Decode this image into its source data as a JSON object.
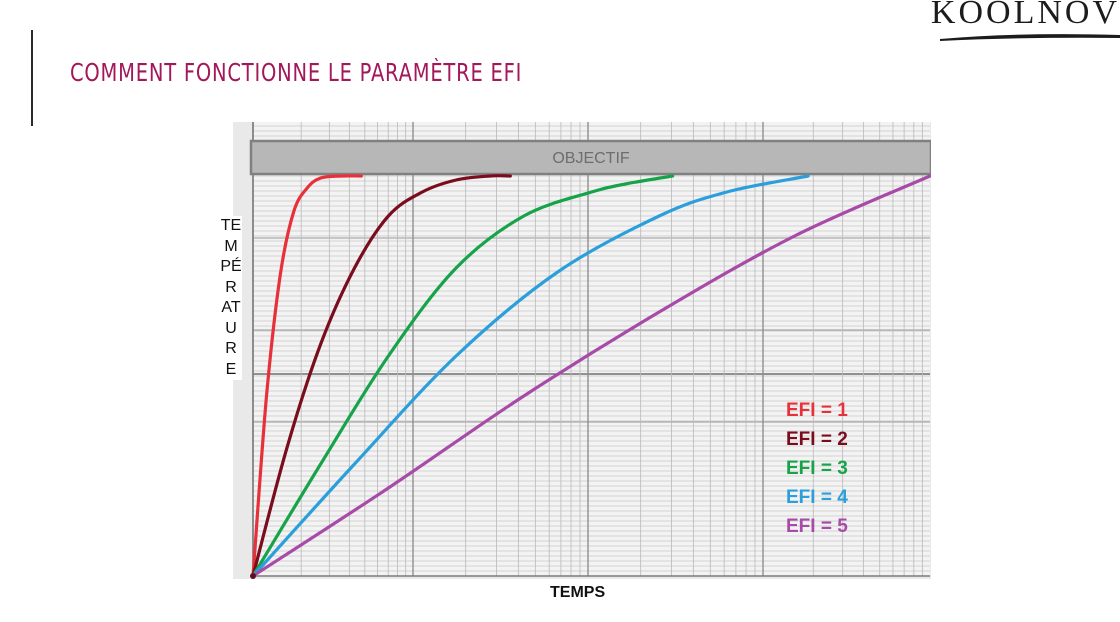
{
  "slide": {
    "title": "COMMENT FONCTIONNE LE PARAMÈTRE EFI",
    "logo_text": "KOOLNOV"
  },
  "chart_data": {
    "type": "line",
    "ylabel": "TEMPÉRATURE",
    "xlabel": "TEMPS",
    "annotation": "OBJECTIF",
    "xlim": [
      0,
      100
    ],
    "ylim": [
      0,
      100
    ],
    "grid": true,
    "legend_position": "bottom-right",
    "series": [
      {
        "name": "EFI = 1",
        "color": "#e8303a",
        "x": [
          0,
          2,
          4,
          6,
          8,
          10,
          13,
          16
        ],
        "y": [
          0,
          45,
          75,
          91,
          97,
          99.5,
          100,
          100
        ]
      },
      {
        "name": "EFI = 2",
        "color": "#7a0c1e",
        "x": [
          0,
          5,
          10,
          15,
          20,
          25,
          30,
          35,
          38
        ],
        "y": [
          0,
          32,
          58,
          77,
          90,
          96,
          99,
          100,
          100
        ]
      },
      {
        "name": "EFI = 3",
        "color": "#17a34a",
        "x": [
          0,
          10,
          20,
          30,
          40,
          50,
          55,
          62
        ],
        "y": [
          0,
          28,
          55,
          77,
          90,
          96,
          98,
          100
        ]
      },
      {
        "name": "EFI = 4",
        "color": "#2a9fdc",
        "x": [
          0,
          15,
          30,
          45,
          60,
          70,
          82
        ],
        "y": [
          0,
          28,
          55,
          76,
          90,
          96,
          100
        ]
      },
      {
        "name": "EFI = 5",
        "color": "#a84aa8",
        "x": [
          0,
          20,
          40,
          60,
          80,
          100
        ],
        "y": [
          0,
          22,
          45,
          66,
          85,
          100
        ]
      }
    ]
  }
}
